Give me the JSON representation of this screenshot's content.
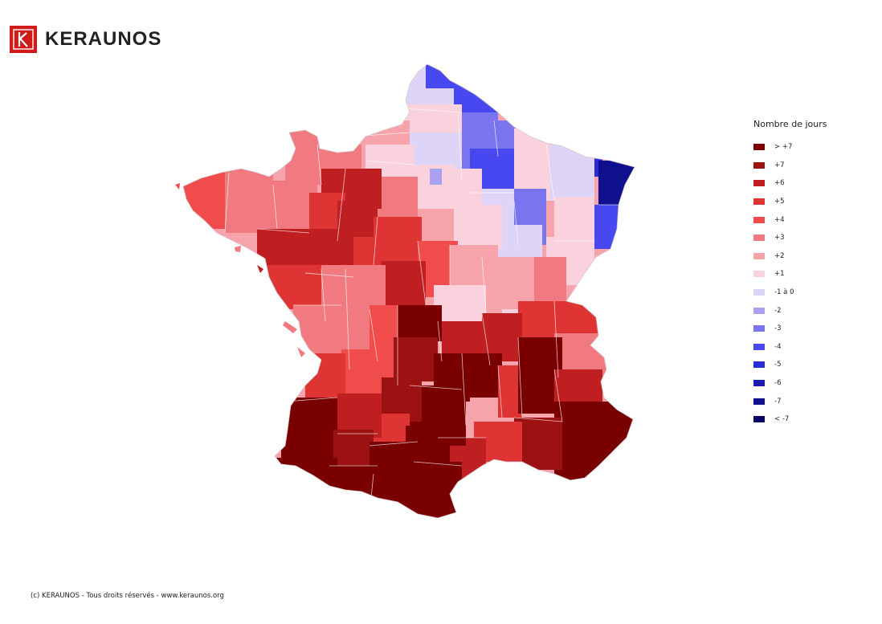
{
  "brand": {
    "name": "KERAUNOS",
    "logo_color": "#d11a1a"
  },
  "legend": {
    "title": "Nombre de jours",
    "items": [
      {
        "label": "> +7",
        "color": "#7a0000"
      },
      {
        "label": "+7",
        "color": "#9c1111"
      },
      {
        "label": "+6",
        "color": "#c01f22"
      },
      {
        "label": "+5",
        "color": "#de3434"
      },
      {
        "label": "+4",
        "color": "#f04c4c"
      },
      {
        "label": "+3",
        "color": "#f07a80"
      },
      {
        "label": "+2",
        "color": "#f6a3ab"
      },
      {
        "label": "+1",
        "color": "#f9d2dd"
      },
      {
        "label": "-1 à 0",
        "color": "#ded4f7"
      },
      {
        "label": "-2",
        "color": "#aaa2f1"
      },
      {
        "label": "-3",
        "color": "#7a74ee"
      },
      {
        "label": "-4",
        "color": "#4848f0"
      },
      {
        "label": "-5",
        "color": "#2b2bd8"
      },
      {
        "label": "-6",
        "color": "#1c1cb4"
      },
      {
        "label": "-7",
        "color": "#10108f"
      },
      {
        "label": "< -7",
        "color": "#050568"
      }
    ]
  },
  "footer": {
    "copyright": "(c) KERAUNOS - Tous droits réservés - www.keraunos.org"
  }
}
